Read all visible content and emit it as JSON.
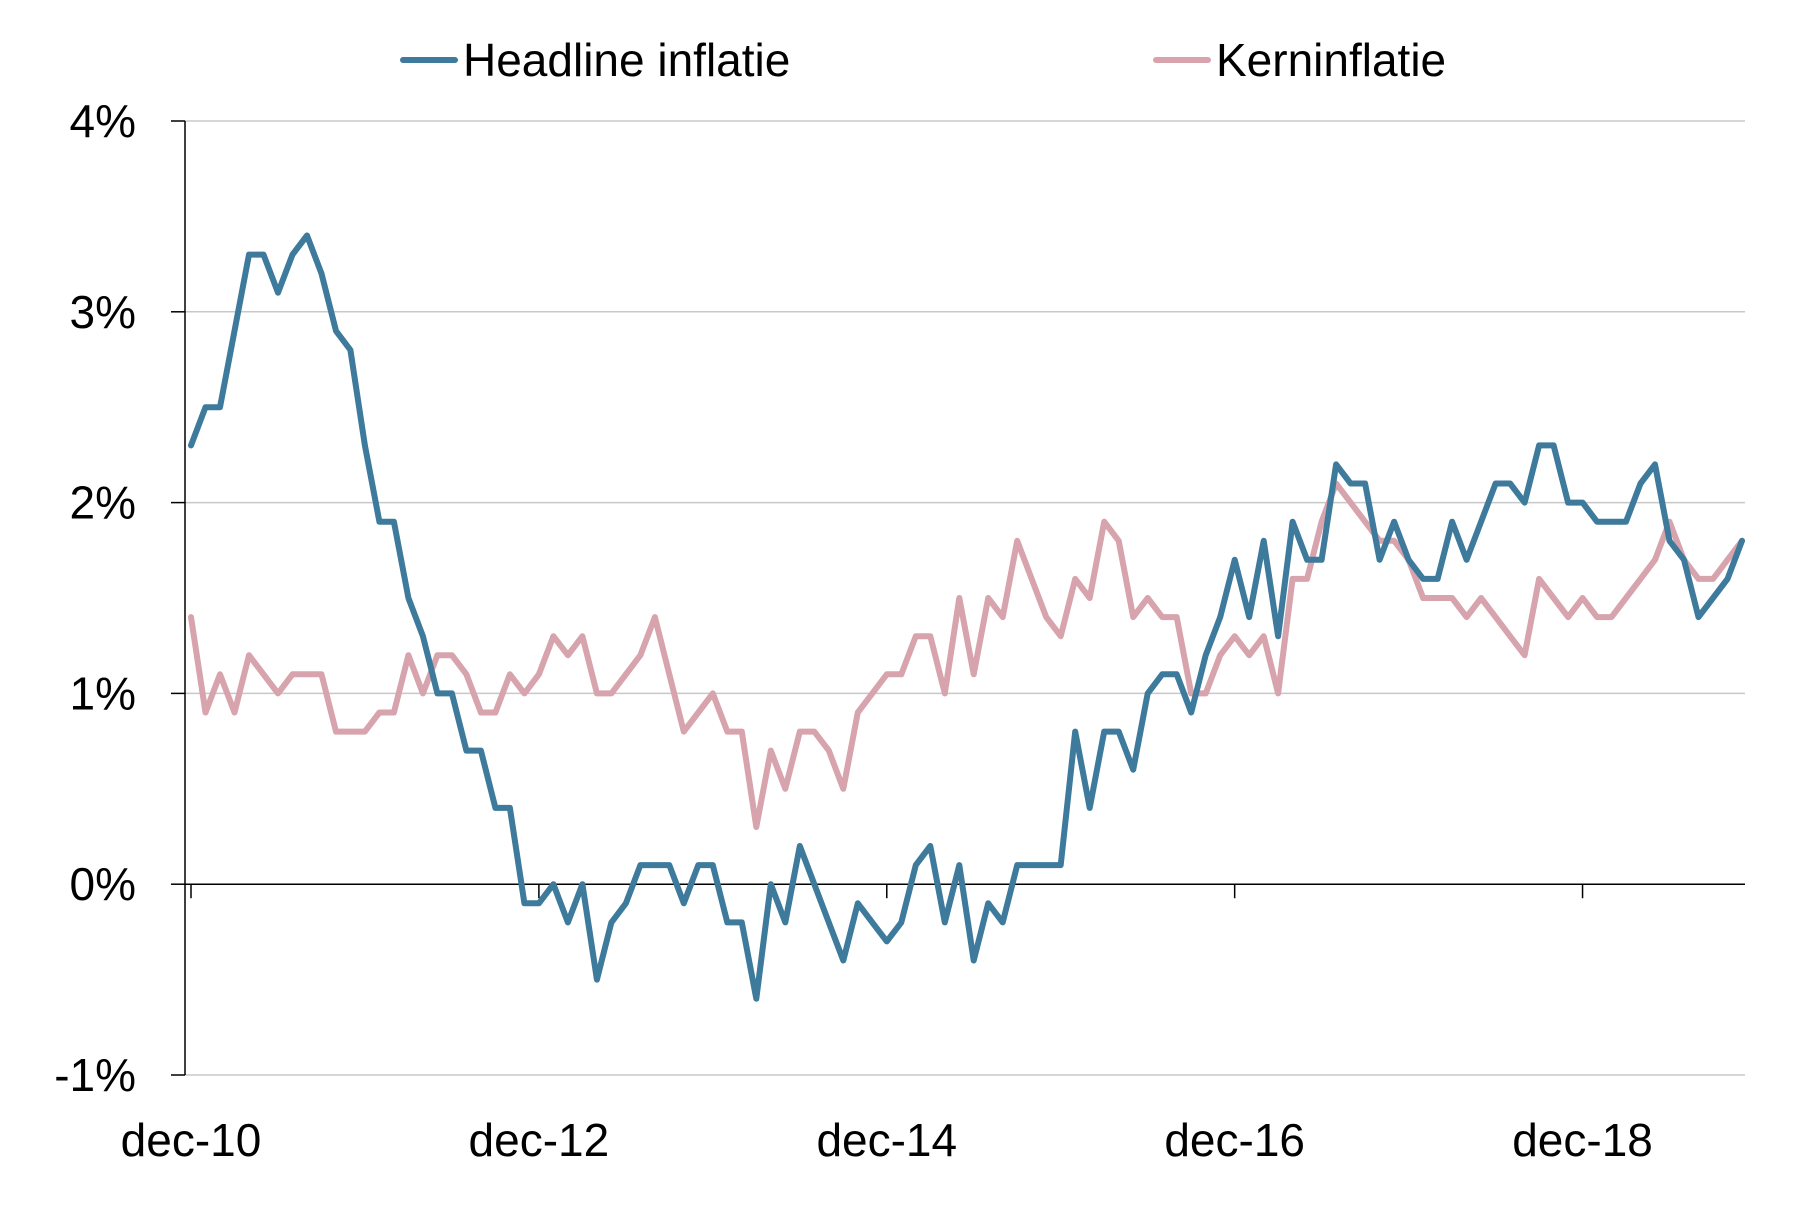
{
  "chart_data": {
    "type": "line",
    "title": "",
    "xlabel": "",
    "ylabel": "",
    "ylim": [
      -1,
      4
    ],
    "y_ticks": [
      {
        "value": -1,
        "label": "-1%"
      },
      {
        "value": 0,
        "label": "0%"
      },
      {
        "value": 1,
        "label": "1%"
      },
      {
        "value": 2,
        "label": "2%"
      },
      {
        "value": 3,
        "label": "3%"
      },
      {
        "value": 4,
        "label": "4%"
      }
    ],
    "x_start": "2010-12",
    "x_ticks": [
      {
        "index": 0,
        "label": "dec-10"
      },
      {
        "index": 24,
        "label": "dec-12"
      },
      {
        "index": 48,
        "label": "dec-14"
      },
      {
        "index": 72,
        "label": "dec-16"
      },
      {
        "index": 96,
        "label": "dec-18"
      }
    ],
    "grid": true,
    "legend_position": "top",
    "series": [
      {
        "name": "Headline inflatie",
        "color": "#3d7a9b",
        "values": [
          2.3,
          2.5,
          2.5,
          2.9,
          3.3,
          3.3,
          3.1,
          3.3,
          3.4,
          3.2,
          2.9,
          2.8,
          2.3,
          1.9,
          1.9,
          1.5,
          1.3,
          1.0,
          1.0,
          0.7,
          0.7,
          0.4,
          0.4,
          -0.1,
          -0.1,
          0.0,
          -0.2,
          0.0,
          -0.5,
          -0.2,
          -0.1,
          0.1,
          0.1,
          0.1,
          -0.1,
          0.1,
          0.1,
          -0.2,
          -0.2,
          -0.6,
          0.0,
          -0.2,
          0.2,
          0.0,
          -0.2,
          -0.4,
          -0.1,
          -0.2,
          -0.3,
          -0.2,
          0.1,
          0.2,
          -0.2,
          0.1,
          -0.4,
          -0.1,
          -0.2,
          0.1,
          0.1,
          0.1,
          0.1,
          0.8,
          0.4,
          0.8,
          0.8,
          0.6,
          1.0,
          1.1,
          1.1,
          0.9,
          1.2,
          1.4,
          1.7,
          1.4,
          1.8,
          1.3,
          1.9,
          1.7,
          1.7,
          2.2,
          2.1,
          2.1,
          1.7,
          1.9,
          1.7,
          1.6,
          1.6,
          1.9,
          1.7,
          1.9,
          2.1,
          2.1,
          2.0,
          2.3,
          2.3,
          2.0,
          2.0,
          1.9,
          1.9,
          1.9,
          2.1,
          2.2,
          1.8,
          1.7,
          1.4,
          1.5,
          1.6,
          1.8
        ]
      },
      {
        "name": "Kerninflatie",
        "color": "#d7a3ad",
        "values": [
          1.4,
          0.9,
          1.1,
          0.9,
          1.2,
          1.1,
          1.0,
          1.1,
          1.1,
          1.1,
          0.8,
          0.8,
          0.8,
          0.9,
          0.9,
          1.2,
          1.0,
          1.2,
          1.2,
          1.1,
          0.9,
          0.9,
          1.1,
          1.0,
          1.1,
          1.3,
          1.2,
          1.3,
          1.0,
          1.0,
          1.1,
          1.2,
          1.4,
          1.1,
          0.8,
          0.9,
          1.0,
          0.8,
          0.8,
          0.3,
          0.7,
          0.5,
          0.8,
          0.8,
          0.7,
          0.5,
          0.9,
          1.0,
          1.1,
          1.1,
          1.3,
          1.3,
          1.0,
          1.5,
          1.1,
          1.5,
          1.4,
          1.8,
          1.6,
          1.4,
          1.3,
          1.6,
          1.5,
          1.9,
          1.8,
          1.4,
          1.5,
          1.4,
          1.4,
          1.0,
          1.0,
          1.2,
          1.3,
          1.2,
          1.3,
          1.0,
          1.6,
          1.6,
          1.9,
          2.1,
          2.0,
          1.9,
          1.8,
          1.8,
          1.7,
          1.5,
          1.5,
          1.5,
          1.4,
          1.5,
          1.4,
          1.3,
          1.2,
          1.6,
          1.5,
          1.4,
          1.5,
          1.4,
          1.4,
          1.5,
          1.6,
          1.7,
          1.9,
          1.7,
          1.6,
          1.6,
          1.7,
          1.8
        ]
      }
    ]
  }
}
